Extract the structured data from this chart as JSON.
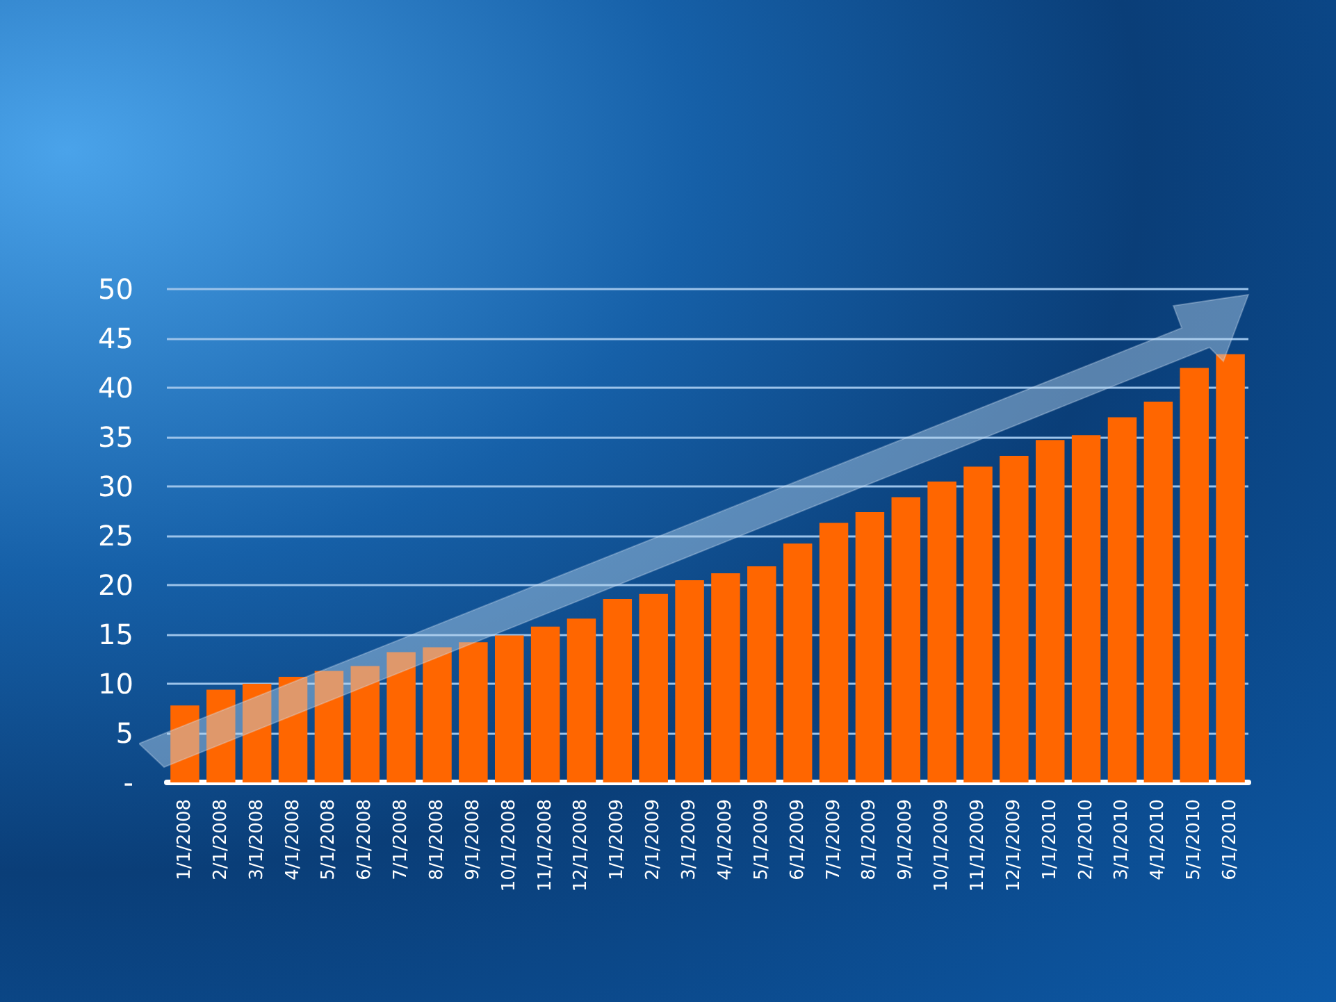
{
  "chart_data": {
    "type": "bar",
    "categories": [
      "1/1/2008",
      "2/1/2008",
      "3/1/2008",
      "4/1/2008",
      "5/1/2008",
      "6/1/2008",
      "7/1/2008",
      "8/1/2008",
      "9/1/2008",
      "10/1/2008",
      "11/1/2008",
      "12/1/2008",
      "1/1/2009",
      "2/1/2009",
      "3/1/2009",
      "4/1/2009",
      "5/1/2009",
      "6/1/2009",
      "7/1/2009",
      "8/1/2009",
      "9/1/2009",
      "10/1/2009",
      "11/1/2009",
      "12/1/2009",
      "1/1/2010",
      "2/1/2010",
      "3/1/2010",
      "4/1/2010",
      "5/1/2010",
      "6/1/2010"
    ],
    "values": [
      7.8,
      9.4,
      10.0,
      10.7,
      11.3,
      11.8,
      13.2,
      13.7,
      14.2,
      14.9,
      15.8,
      16.6,
      18.6,
      19.1,
      20.5,
      21.2,
      21.9,
      24.2,
      26.3,
      27.4,
      28.9,
      30.5,
      32.0,
      33.1,
      34.7,
      35.2,
      37.0,
      38.6,
      42.0,
      43.4
    ],
    "color": "#ff6600",
    "ylim": [
      0,
      50
    ],
    "yticks": [
      {
        "value": 0,
        "label": "-"
      },
      5,
      10,
      15,
      20,
      25,
      30,
      35,
      40,
      45,
      50
    ],
    "grid": "y"
  }
}
